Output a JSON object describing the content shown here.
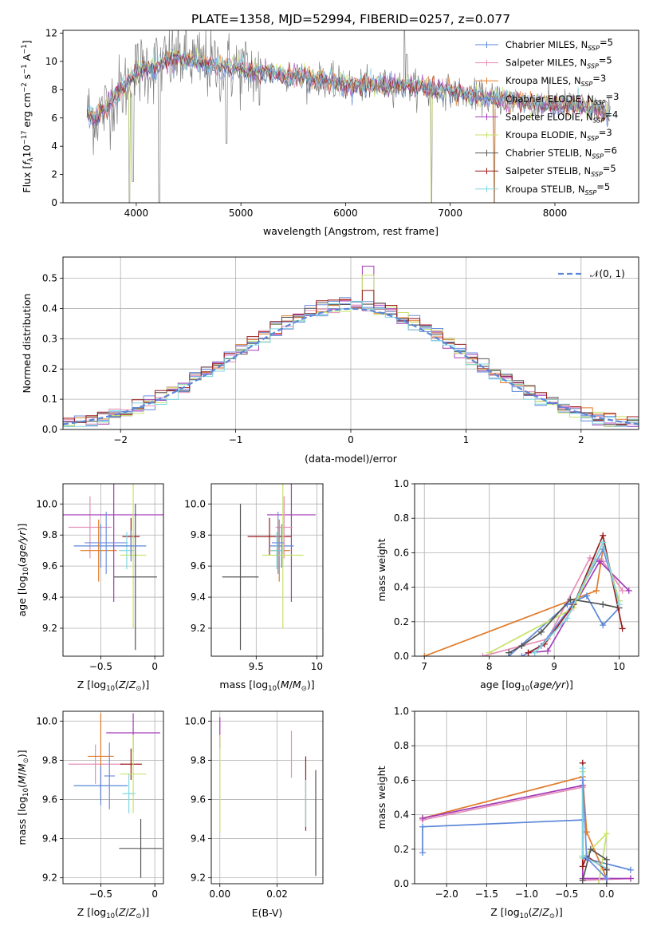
{
  "figure_title": "PLATE=1358, MJD=52994, FIBERID=0257, z=0.077",
  "colors": {
    "Chabrier MILES": "#5b87d8",
    "Salpeter MILES": "#e58fb8",
    "Kroupa MILES": "#e07b2a",
    "Chabrier ELODIE": "#6f8fe0",
    "Salpeter ELODIE": "#a43cb8",
    "Kroupa ELODIE": "#c7e36a",
    "Chabrier STELIB": "#555555",
    "Salpeter STELIB": "#9b1c1c",
    "Kroupa STELIB": "#7fd6e0"
  },
  "chart_data": [
    {
      "id": "spectrum",
      "type": "line",
      "title": "PLATE=1358, MJD=52994, FIBERID=0257, z=0.077",
      "xlabel": "wavelength [Angstrom, rest frame]",
      "ylabel": "Flux [f_λ 10^-17 erg cm^-2 s^-1 A^-1]",
      "xlim": [
        3300,
        8800
      ],
      "ylim": [
        0,
        12.2
      ],
      "xticks": [
        4000,
        5000,
        6000,
        7000,
        8000
      ],
      "yticks": [
        0,
        2,
        4,
        6,
        8,
        10,
        12
      ],
      "grid": false,
      "legend_position": "top-right",
      "legend": [
        {
          "base": "Chabrier MILES, N",
          "sub": "SSP",
          "tail": "=5"
        },
        {
          "base": "Salpeter MILES, N",
          "sub": "SSP",
          "tail": "=5"
        },
        {
          "base": "Kroupa MILES, N",
          "sub": "SSP",
          "tail": "=3"
        },
        {
          "base": "Chabrier ELODIE, N",
          "sub": "SSP",
          "tail": "=3"
        },
        {
          "base": "Salpeter ELODIE, N",
          "sub": "SSP",
          "tail": "=4"
        },
        {
          "base": "Kroupa ELODIE, N",
          "sub": "SSP",
          "tail": "=3"
        },
        {
          "base": "Chabrier STELIB, N",
          "sub": "SSP",
          "tail": "=6"
        },
        {
          "base": "Salpeter STELIB, N",
          "sub": "SSP",
          "tail": "=5"
        },
        {
          "base": "Kroupa STELIB, N",
          "sub": "SSP",
          "tail": "=5"
        }
      ],
      "continuum": [
        [
          3530,
          6.4
        ],
        [
          3600,
          6.0
        ],
        [
          3700,
          6.6
        ],
        [
          3800,
          7.6
        ],
        [
          3900,
          8.3
        ],
        [
          4000,
          9.3
        ],
        [
          4100,
          9.6
        ],
        [
          4200,
          9.7
        ],
        [
          4400,
          10.3
        ],
        [
          4600,
          9.9
        ],
        [
          4800,
          9.6
        ],
        [
          5000,
          9.5
        ],
        [
          5200,
          9.2
        ],
        [
          5400,
          9.1
        ],
        [
          5600,
          8.9
        ],
        [
          5800,
          8.7
        ],
        [
          6000,
          8.4
        ],
        [
          6200,
          8.3
        ],
        [
          6400,
          8.3
        ],
        [
          6600,
          8.3
        ],
        [
          6800,
          8.1
        ],
        [
          7000,
          7.9
        ],
        [
          7200,
          7.6
        ],
        [
          7400,
          7.4
        ],
        [
          7600,
          7.3
        ],
        [
          7800,
          7.0
        ],
        [
          8000,
          6.9
        ],
        [
          8200,
          6.9
        ],
        [
          8400,
          6.6
        ],
        [
          8530,
          6.2
        ]
      ],
      "absorption_features": [
        [
          3934,
          0.0
        ],
        [
          3969,
          1.5
        ],
        [
          4220,
          0.0
        ],
        [
          4861,
          4.2
        ],
        [
          5178,
          6.9
        ],
        [
          5896,
          7.6
        ],
        [
          6820,
          0.0
        ],
        [
          7420,
          0.0
        ]
      ],
      "emission_features": [
        [
          6563,
          12.2
        ],
        [
          6583,
          10.5
        ]
      ]
    },
    {
      "id": "residuals",
      "type": "histogram",
      "xlabel": "(data-model)/error",
      "ylabel": "Normed distribution",
      "xlim": [
        -2.5,
        2.5
      ],
      "ylim": [
        0,
        0.57
      ],
      "xticks": [
        -2,
        -1,
        0,
        1,
        2
      ],
      "yticks": [
        0.0,
        0.1,
        0.2,
        0.3,
        0.4,
        0.5
      ],
      "grid": true,
      "bin_width": 0.1,
      "reference_curve": {
        "name": "𝒩(0, 1)",
        "mean": 0,
        "sigma": 1
      },
      "legend_position": "top-right",
      "peak_bins": [
        {
          "series": "Salpeter ELODIE",
          "x": 0.15,
          "value": 0.54
        },
        {
          "series": "Kroupa ELODIE",
          "x": 0.15,
          "value": 0.51
        },
        {
          "series": "Salpeter STELIB",
          "x": 0.15,
          "value": 0.46
        }
      ]
    },
    {
      "id": "z-age",
      "type": "scatter",
      "xlabel": "Z [log10(Z/Z⊙)]",
      "ylabel": "age [log10(age/yr)]",
      "xlim": [
        -0.85,
        0.08
      ],
      "ylim": [
        9.02,
        10.13
      ],
      "xticks": [
        -0.5,
        0.0
      ],
      "yticks": [
        9.2,
        9.4,
        9.6,
        9.8,
        10.0
      ],
      "grid": true,
      "points": [
        {
          "series": "Salpeter MILES",
          "x": -0.6,
          "xerr": 0.2,
          "y": 9.85,
          "yerr": 0.2
        },
        {
          "series": "Chabrier MILES",
          "x": -0.5,
          "xerr": 0.25,
          "y": 9.73,
          "yerr": 0.14
        },
        {
          "series": "Kroupa MILES",
          "x": -0.52,
          "xerr": 0.17,
          "y": 9.7,
          "yerr": 0.2
        },
        {
          "series": "Salpeter ELODIE",
          "x": -0.38,
          "xerr": 0.52,
          "y": 9.93,
          "yerr": 0.56
        },
        {
          "series": "Chabrier ELODIE",
          "x": -0.45,
          "xerr": 0.2,
          "y": 9.75,
          "yerr": 0.2
        },
        {
          "series": "Salpeter STELIB",
          "x": -0.22,
          "xerr": 0.08,
          "y": 9.79,
          "yerr": 0.12
        },
        {
          "series": "Kroupa STELIB",
          "x": -0.26,
          "xerr": 0.07,
          "y": 9.7,
          "yerr": 0.12
        },
        {
          "series": "Kroupa ELODIE",
          "x": -0.2,
          "xerr": 0.12,
          "y": 9.67,
          "yerr": 0.47
        },
        {
          "series": "Chabrier STELIB",
          "x": -0.18,
          "xerr": 0.2,
          "y": 9.53,
          "yerr": 0.47
        },
        {
          "series": "Chabrier MILES",
          "x": -0.22,
          "xerr": 0.14,
          "y": 9.73,
          "yerr": 0.1
        }
      ]
    },
    {
      "id": "mass-age",
      "type": "scatter",
      "xlabel": "mass [log10(M/M⊙)]",
      "ylabel": "",
      "xlim": [
        9.13,
        10.05
      ],
      "ylim": [
        9.02,
        10.13
      ],
      "xticks": [
        9.5,
        10.0
      ],
      "yticks": [
        9.2,
        9.4,
        9.6,
        9.8,
        10.0
      ],
      "grid": true,
      "points": [
        {
          "series": "Chabrier STELIB",
          "x": 9.37,
          "xerr": 0.15,
          "y": 9.53,
          "yerr": 0.47
        },
        {
          "series": "Salpeter STELIB",
          "x": 9.61,
          "xerr": 0.18,
          "y": 9.79,
          "yerr": 0.12
        },
        {
          "series": "Salpeter ELODIE",
          "x": 9.79,
          "xerr": 0.2,
          "y": 9.93,
          "yerr": 0.56
        },
        {
          "series": "Chabrier MILES",
          "x": 9.71,
          "xerr": 0.1,
          "y": 9.73,
          "yerr": 0.14
        },
        {
          "series": "Salpeter MILES",
          "x": 9.73,
          "xerr": 0.07,
          "y": 9.85,
          "yerr": 0.2
        },
        {
          "series": "Kroupa MILES",
          "x": 9.69,
          "xerr": 0.09,
          "y": 9.7,
          "yerr": 0.2
        },
        {
          "series": "Kroupa ELODIE",
          "x": 9.72,
          "xerr": 0.17,
          "y": 9.67,
          "yerr": 0.47
        },
        {
          "series": "Kroupa STELIB",
          "x": 9.67,
          "xerr": 0.06,
          "y": 9.7,
          "yerr": 0.12
        },
        {
          "series": "Chabrier ELODIE",
          "x": 9.68,
          "xerr": 0.05,
          "y": 9.75,
          "yerr": 0.2
        }
      ]
    },
    {
      "id": "age-weight",
      "type": "line",
      "xlabel": "age [log10(age/yr)]",
      "ylabel": "mass weight",
      "xlim": [
        6.85,
        10.3
      ],
      "ylim": [
        0,
        1.0
      ],
      "xticks": [
        7,
        8,
        9,
        10
      ],
      "yticks": [
        0.0,
        0.2,
        0.4,
        0.6,
        0.8,
        1.0
      ],
      "grid": true,
      "series": [
        {
          "name": "Kroupa MILES",
          "x": [
            7.0,
            9.65,
            9.75
          ],
          "y": [
            0.0,
            0.38,
            0.62
          ]
        },
        {
          "name": "Chabrier MILES",
          "x": [
            8.3,
            9.2,
            9.5,
            9.75,
            10.0
          ],
          "y": [
            0.0,
            0.3,
            0.35,
            0.18,
            0.28
          ]
        },
        {
          "name": "Salpeter MILES",
          "x": [
            7.9,
            8.9,
            9.55,
            9.75,
            10.05
          ],
          "y": [
            0.0,
            0.1,
            0.57,
            0.55,
            0.38
          ]
        },
        {
          "name": "Chabrier ELODIE",
          "x": [
            8.5,
            8.8,
            9.3,
            9.75,
            10.0
          ],
          "y": [
            0.0,
            0.06,
            0.31,
            0.62,
            0.32
          ]
        },
        {
          "name": "Salpeter ELODIE",
          "x": [
            8.6,
            8.9,
            9.7,
            10.15
          ],
          "y": [
            0.02,
            0.03,
            0.55,
            0.38
          ]
        },
        {
          "name": "Kroupa ELODIE",
          "x": [
            8.0,
            9.3,
            9.75,
            10.0
          ],
          "y": [
            0.02,
            0.28,
            0.66,
            0.32
          ]
        },
        {
          "name": "Chabrier STELIB",
          "x": [
            8.3,
            8.5,
            8.8,
            9.25,
            9.75,
            10.0
          ],
          "y": [
            0.02,
            0.06,
            0.14,
            0.33,
            0.3,
            0.28
          ]
        },
        {
          "name": "Salpeter STELIB",
          "x": [
            8.6,
            8.85,
            9.3,
            9.75,
            10.05
          ],
          "y": [
            0.02,
            0.07,
            0.3,
            0.7,
            0.16
          ]
        },
        {
          "name": "Kroupa STELIB",
          "x": [
            8.7,
            9.2,
            9.75,
            10.0
          ],
          "y": [
            0.02,
            0.22,
            0.66,
            0.3
          ]
        }
      ]
    },
    {
      "id": "z-mass",
      "type": "scatter",
      "xlabel": "Z [log10(Z/Z⊙)]",
      "ylabel": "mass [log10(M/M⊙)]",
      "xlim": [
        -0.85,
        0.08
      ],
      "ylim": [
        9.17,
        10.05
      ],
      "xticks": [
        -0.5,
        0.0
      ],
      "yticks": [
        9.2,
        9.4,
        9.6,
        9.8,
        10.0
      ],
      "grid": true,
      "points": [
        {
          "series": "Salpeter MILES",
          "x": -0.55,
          "xerr": 0.25,
          "y": 9.78,
          "yerr": 0.1
        },
        {
          "series": "Kroupa MILES",
          "x": -0.5,
          "xerr": 0.12,
          "y": 9.82,
          "yerr": 0.22
        },
        {
          "series": "Chabrier MILES",
          "x": -0.5,
          "xerr": 0.25,
          "y": 9.67,
          "yerr": 0.1
        },
        {
          "series": "Chabrier ELODIE",
          "x": -0.42,
          "xerr": 0.05,
          "y": 9.72,
          "yerr": 0.17
        },
        {
          "series": "Salpeter ELODIE",
          "x": -0.2,
          "xerr": 0.25,
          "y": 9.94,
          "yerr": 0.1
        },
        {
          "series": "Salpeter STELIB",
          "x": -0.22,
          "xerr": 0.1,
          "y": 9.78,
          "yerr": 0.08
        },
        {
          "series": "Kroupa ELODIE",
          "x": -0.2,
          "xerr": 0.12,
          "y": 9.73,
          "yerr": 0.2
        },
        {
          "series": "Kroupa STELIB",
          "x": -0.24,
          "xerr": 0.06,
          "y": 9.63,
          "yerr": 0.1
        },
        {
          "series": "Chabrier STELIB",
          "x": -0.13,
          "xerr": 0.2,
          "y": 9.35,
          "yerr": 0.15
        }
      ]
    },
    {
      "id": "ebv-mass",
      "type": "scatter",
      "xlabel": "E(B-V)",
      "ylabel": "",
      "xlim": [
        -0.003,
        0.036
      ],
      "ylim": [
        9.17,
        10.05
      ],
      "xticks": [
        0.0,
        0.02
      ],
      "xtick_labels": [
        "0.00",
        "0.02"
      ],
      "yticks": [
        9.2,
        9.4,
        9.6,
        9.8,
        10.0
      ],
      "grid": true,
      "points": [
        {
          "series": "Salpeter ELODIE",
          "x": 0.0,
          "y": 9.94,
          "yerr": 0.08
        },
        {
          "series": "Kroupa ELODIE",
          "x": 0.0,
          "y": 9.68,
          "yerr": 0.25
        },
        {
          "series": "Salpeter MILES",
          "x": 0.025,
          "y": 9.83,
          "yerr": 0.12
        },
        {
          "series": "Salpeter STELIB",
          "x": 0.03,
          "y": 9.63,
          "yerr": 0.19
        },
        {
          "series": "Kroupa STELIB",
          "x": 0.03,
          "y": 9.58,
          "yerr": 0.12
        },
        {
          "series": "Chabrier STELIB",
          "x": 0.0335,
          "y": 9.48,
          "yerr": 0.27
        }
      ]
    },
    {
      "id": "z-weight",
      "type": "line",
      "xlabel": "Z [log10(Z/Z⊙)]",
      "ylabel": "mass weight",
      "xlim": [
        -2.4,
        0.4
      ],
      "ylim": [
        0,
        1.0
      ],
      "xticks": [
        -2.0,
        -1.5,
        -1.0,
        -0.5,
        0.0
      ],
      "xtick_labels": [
        "−2.0",
        "−1.5",
        "−1.0",
        "−0.5",
        "0.0"
      ],
      "yticks": [
        0.0,
        0.2,
        0.4,
        0.6,
        0.8,
        1.0
      ],
      "grid": true,
      "series": [
        {
          "name": "Chabrier MILES",
          "x": [
            -2.3,
            -2.3,
            -0.3,
            -0.3,
            0.3
          ],
          "y": [
            0.18,
            0.33,
            0.37,
            0.15,
            0.08
          ]
        },
        {
          "name": "Kroupa MILES",
          "x": [
            -2.3,
            -0.3,
            -0.25,
            0.0
          ],
          "y": [
            0.38,
            0.62,
            0.3,
            0.03
          ]
        },
        {
          "name": "Salpeter MILES",
          "x": [
            -2.3,
            -0.3,
            -0.3,
            0.3
          ],
          "y": [
            0.37,
            0.56,
            0.02,
            0.03
          ]
        },
        {
          "name": "Salpeter ELODIE",
          "x": [
            -2.3,
            -0.3,
            -0.3,
            0.3
          ],
          "y": [
            0.38,
            0.57,
            0.03,
            0.03
          ]
        },
        {
          "name": "Kroupa ELODIE",
          "x": [
            -0.3,
            -0.3,
            0.0,
            -0.1
          ],
          "y": [
            0.65,
            0.15,
            0.29,
            0.0
          ]
        },
        {
          "name": "Salpeter STELIB",
          "x": [
            -0.3,
            -0.3,
            -0.25,
            0.0
          ],
          "y": [
            0.7,
            0.1,
            0.16,
            0.08
          ]
        },
        {
          "name": "Kroupa STELIB",
          "x": [
            -0.3,
            -0.3,
            0.0,
            0.0
          ],
          "y": [
            0.67,
            0.16,
            0.09,
            0.0
          ]
        },
        {
          "name": "Chabrier STELIB",
          "x": [
            -0.3,
            -0.2,
            0.0,
            0.0
          ],
          "y": [
            0.02,
            0.2,
            0.14,
            0.0
          ]
        },
        {
          "name": "Chabrier ELODIE",
          "x": [
            -0.3,
            -0.25,
            0.0
          ],
          "y": [
            0.6,
            0.15,
            0.03
          ]
        }
      ]
    }
  ]
}
